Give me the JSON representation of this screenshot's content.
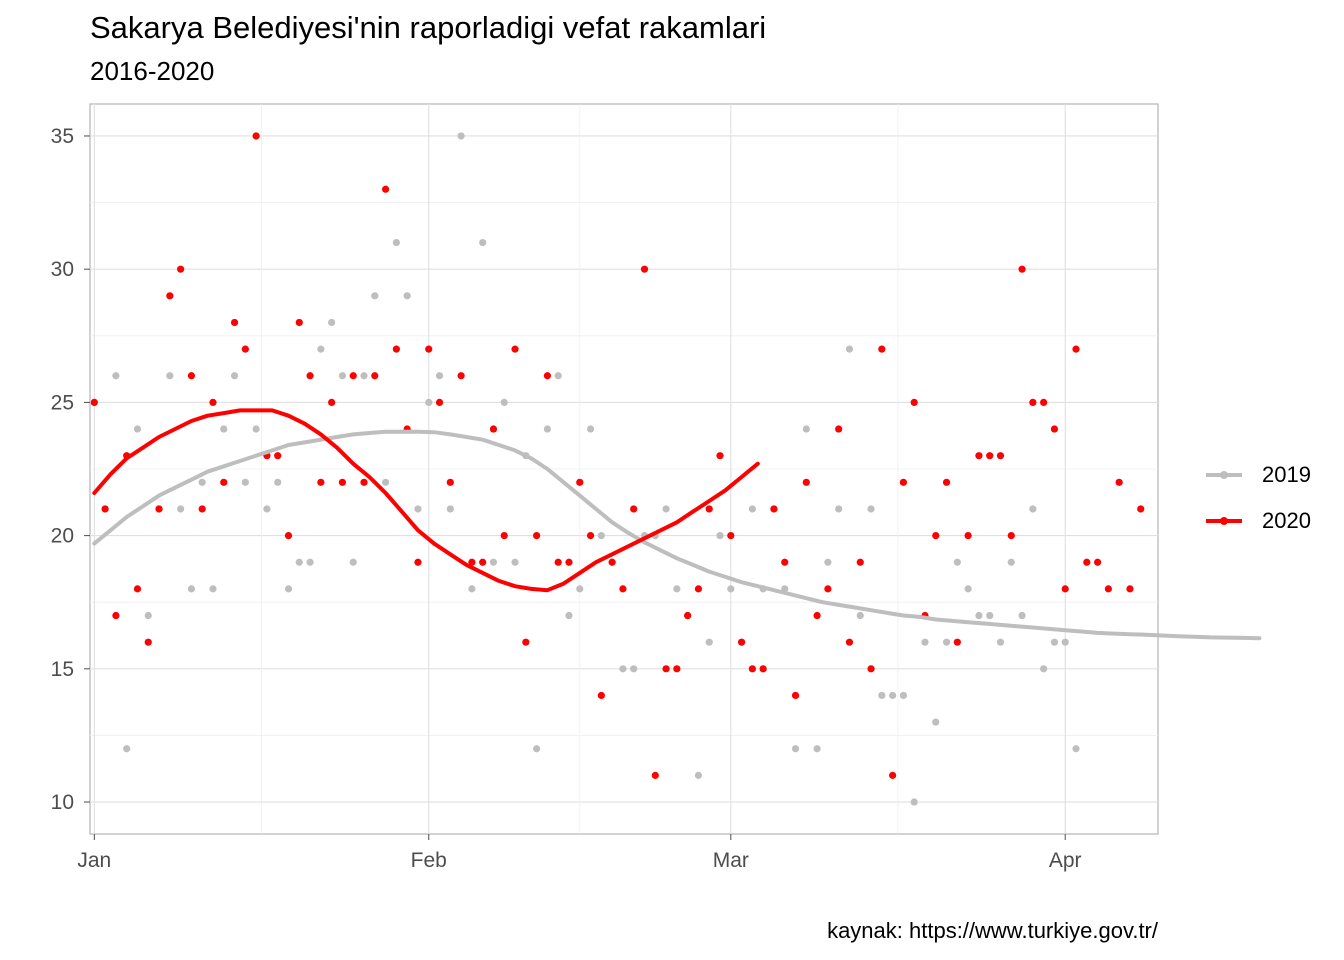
{
  "title": "Sakarya Belediyesi'nin raporladigi vefat rakamlari",
  "subtitle": "2016-2020",
  "caption": "kaynak: https://www.turkiye.gov.tr/",
  "chart_data": {
    "type": "scatter",
    "x_unit": "day of year (1 = Jan 1)",
    "xlim": [
      0.6,
      99.6
    ],
    "ylim": [
      8.8,
      36.2
    ],
    "x_ticks": [
      {
        "label": "Jan",
        "value": 1
      },
      {
        "label": "Feb",
        "value": 32
      },
      {
        "label": "Mar",
        "value": 60
      },
      {
        "label": "Apr",
        "value": 91
      }
    ],
    "y_ticks": [
      10,
      15,
      20,
      25,
      30,
      35
    ],
    "legend": "right",
    "series": [
      {
        "name": "2019",
        "color": "#bebebe",
        "x": [
          1,
          2,
          3,
          4,
          5,
          6,
          7,
          8,
          9,
          10,
          11,
          12,
          13,
          14,
          15,
          16,
          17,
          18,
          19,
          20,
          21,
          22,
          23,
          24,
          25,
          26,
          27,
          28,
          29,
          30,
          31,
          32,
          33,
          34,
          35,
          36,
          37,
          38,
          39,
          40,
          41,
          42,
          43,
          44,
          45,
          46,
          47,
          48,
          49,
          50,
          51,
          52,
          53,
          54,
          55,
          56,
          57,
          58,
          59,
          60,
          61,
          62,
          63,
          64,
          65,
          66,
          67,
          68,
          69,
          70,
          71,
          72,
          73,
          74,
          75,
          76,
          77,
          78,
          79,
          80,
          81,
          82,
          83,
          84,
          85,
          86,
          87,
          88,
          89,
          90,
          91,
          92,
          93,
          94,
          95,
          96,
          97
        ],
        "y": [
          25,
          21,
          26,
          12,
          24,
          17,
          21,
          26,
          21,
          18,
          22,
          18,
          24,
          26,
          22,
          24,
          21,
          22,
          18,
          19,
          19,
          27,
          28,
          26,
          19,
          26,
          29,
          22,
          31,
          29,
          21,
          25,
          26,
          21,
          35,
          18,
          31,
          19,
          25,
          19,
          23,
          12,
          24,
          26,
          17,
          18,
          24,
          20,
          19,
          15,
          15,
          20,
          20,
          21,
          18,
          17,
          11,
          16,
          20,
          18,
          16,
          21,
          18,
          21,
          18,
          12,
          24,
          12,
          19,
          21,
          27,
          17,
          21,
          14,
          14,
          14,
          10,
          16,
          13,
          16,
          19,
          18,
          17,
          17,
          16,
          19,
          17,
          21,
          15,
          16,
          16,
          12,
          null,
          null,
          null,
          null,
          null
        ],
        "smooth": [
          19.7,
          20.2,
          20.7,
          21.1,
          21.5,
          21.8,
          22.1,
          22.4,
          22.6,
          22.8,
          23.0,
          23.2,
          23.4,
          23.5,
          23.6,
          23.7,
          23.8,
          23.85,
          23.9,
          23.9,
          23.9,
          23.88,
          23.8,
          23.7,
          23.6,
          23.4,
          23.2,
          22.9,
          22.5,
          22.0,
          21.5,
          21.0,
          20.5,
          20.1,
          19.75,
          19.45,
          19.15,
          18.9,
          18.65,
          18.45,
          18.25,
          18.1,
          17.95,
          17.8,
          17.65,
          17.5,
          17.4,
          17.3,
          17.2,
          17.1,
          17.0,
          16.95,
          16.85,
          16.8,
          16.75,
          16.7,
          16.65,
          16.6,
          16.55,
          16.5,
          16.45,
          16.4,
          16.35,
          16.32,
          16.3,
          16.28,
          16.25,
          16.22,
          16.2,
          16.18,
          16.17,
          16.16,
          16.15
        ]
      },
      {
        "name": "2020",
        "color": "#ff0000",
        "x": [
          1,
          2,
          3,
          4,
          5,
          6,
          7,
          8,
          9,
          10,
          11,
          12,
          13,
          14,
          15,
          16,
          17,
          18,
          19,
          20,
          21,
          22,
          23,
          24,
          25,
          26,
          27,
          28,
          29,
          30,
          31,
          32,
          33,
          34,
          35,
          36,
          37,
          38,
          39,
          40,
          41,
          42,
          43,
          44,
          45,
          46,
          47,
          48,
          49,
          50,
          51,
          52,
          53,
          54,
          55,
          56,
          57,
          58,
          59,
          60,
          61,
          62,
          63,
          64,
          65,
          66,
          67,
          68,
          69,
          70,
          71,
          72,
          73,
          74,
          75,
          76,
          77,
          78,
          79,
          80,
          81,
          82,
          83,
          84,
          85,
          86,
          87,
          88,
          89,
          90,
          91,
          92,
          93,
          94,
          95,
          96,
          97,
          98
        ],
        "y": [
          25,
          21,
          17,
          23,
          18,
          16,
          21,
          29,
          30,
          26,
          21,
          25,
          22,
          28,
          27,
          35,
          23,
          23,
          20,
          28,
          26,
          22,
          25,
          22,
          26,
          22,
          26,
          33,
          27,
          24,
          19,
          27,
          25,
          22,
          26,
          19,
          19,
          24,
          20,
          27,
          16,
          20,
          26,
          19,
          19,
          22,
          20,
          14,
          19,
          18,
          21,
          30,
          11,
          15,
          15,
          17,
          18,
          21,
          23,
          20,
          16,
          15,
          15,
          21,
          19,
          14,
          22,
          17,
          18,
          24,
          16,
          19,
          15,
          27,
          11,
          22,
          25,
          17,
          20,
          22,
          16,
          20,
          23,
          23,
          23,
          20,
          30,
          25,
          25,
          24,
          18,
          27,
          19,
          19,
          18,
          22,
          18,
          21
        ],
        "smooth": [
          21.6,
          22.3,
          22.9,
          23.3,
          23.7,
          24.0,
          24.3,
          24.5,
          24.6,
          24.7,
          24.7,
          24.7,
          24.5,
          24.2,
          23.8,
          23.3,
          22.7,
          22.2,
          21.6,
          20.9,
          20.2,
          19.7,
          19.3,
          18.9,
          18.6,
          18.3,
          18.1,
          18.0,
          17.95,
          18.2,
          18.6,
          19.0,
          19.3,
          19.6,
          19.9,
          20.2,
          20.5,
          20.9,
          21.3,
          21.7,
          22.2,
          22.7
        ]
      }
    ]
  }
}
